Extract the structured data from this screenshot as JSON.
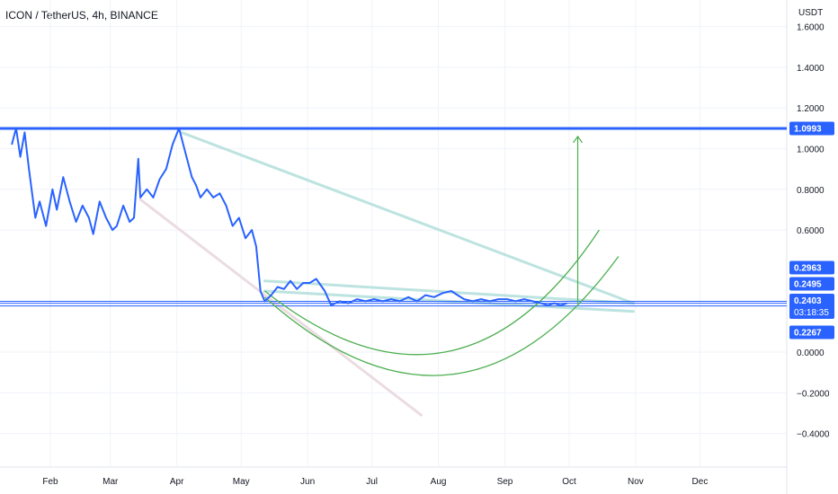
{
  "header": {
    "symbol_line": "ICON / TetherUS, 4h, BINANCE",
    "currency": "USDT"
  },
  "colors": {
    "price_line": "#2962ff",
    "resistance_line": "#2962ff",
    "support_lines": "#2962ff",
    "cup_arcs": "#4caf50",
    "target_arrow": "#4caf50",
    "trend_teal": "#b2dfdb",
    "trend_pink": "#e8d7de",
    "grid": "#f0f3fa",
    "axis_text": "#131722",
    "label_bg": "#2962ff"
  },
  "chart_data": {
    "type": "line",
    "title": "ICON / TetherUS, 4h, BINANCE",
    "ylabel": "USDT",
    "ylim": [
      -0.55,
      1.65
    ],
    "x_axis_labels": [
      "Feb",
      "Mar",
      "Apr",
      "May",
      "Jun",
      "Jul",
      "Aug",
      "Sep",
      "Oct",
      "Nov",
      "Dec"
    ],
    "y_ticks": [
      {
        "value": 1.6,
        "label": "1.6000"
      },
      {
        "value": 1.4,
        "label": "1.4000"
      },
      {
        "value": 1.2,
        "label": "1.2000"
      },
      {
        "value": 1.0,
        "label": "1.0000"
      },
      {
        "value": 0.8,
        "label": "0.8000"
      },
      {
        "value": 0.6,
        "label": "0.6000"
      },
      {
        "value": 0.0,
        "label": "0.0000"
      },
      {
        "value": -0.2,
        "label": "−0.2000"
      },
      {
        "value": -0.4,
        "label": "−0.4000"
      }
    ],
    "series": [
      {
        "points": [
          [
            "Jan 14",
            1.02
          ],
          [
            "Jan 16",
            1.1
          ],
          [
            "Jan 18",
            0.96
          ],
          [
            "Jan 20",
            1.08
          ],
          [
            "Jan 22",
            0.9
          ],
          [
            "Jan 25",
            0.66
          ],
          [
            "Jan 27",
            0.74
          ],
          [
            "Jan 30",
            0.62
          ],
          [
            "Feb 2",
            0.8
          ],
          [
            "Feb 4",
            0.7
          ],
          [
            "Feb 7",
            0.86
          ],
          [
            "Feb 10",
            0.74
          ],
          [
            "Feb 13",
            0.64
          ],
          [
            "Feb 16",
            0.72
          ],
          [
            "Feb 19",
            0.66
          ],
          [
            "Feb 21",
            0.58
          ],
          [
            "Feb 24",
            0.74
          ],
          [
            "Feb 27",
            0.66
          ],
          [
            "Mar 2",
            0.6
          ],
          [
            "Mar 4",
            0.62
          ],
          [
            "Mar 7",
            0.72
          ],
          [
            "Mar 10",
            0.64
          ],
          [
            "Mar 12",
            0.66
          ],
          [
            "Mar 14",
            0.95
          ],
          [
            "Mar 15",
            0.76
          ],
          [
            "Mar 18",
            0.8
          ],
          [
            "Mar 21",
            0.76
          ],
          [
            "Mar 24",
            0.85
          ],
          [
            "Mar 27",
            0.9
          ],
          [
            "Mar 30",
            1.02
          ],
          [
            "Apr 2",
            1.1
          ],
          [
            "Apr 5",
            0.98
          ],
          [
            "Apr 8",
            0.86
          ],
          [
            "Apr 10",
            0.82
          ],
          [
            "Apr 12",
            0.76
          ],
          [
            "Apr 15",
            0.8
          ],
          [
            "Apr 18",
            0.76
          ],
          [
            "Apr 21",
            0.78
          ],
          [
            "Apr 24",
            0.72
          ],
          [
            "Apr 27",
            0.62
          ],
          [
            "Apr 30",
            0.66
          ],
          [
            "May 3",
            0.56
          ],
          [
            "May 6",
            0.6
          ],
          [
            "May 8",
            0.52
          ],
          [
            "May 10",
            0.3
          ],
          [
            "May 12",
            0.25
          ],
          [
            "May 15",
            0.28
          ],
          [
            "May 18",
            0.32
          ],
          [
            "May 21",
            0.31
          ],
          [
            "May 24",
            0.35
          ],
          [
            "May 27",
            0.31
          ],
          [
            "May 30",
            0.34
          ],
          [
            "Jun 2",
            0.34
          ],
          [
            "Jun 5",
            0.36
          ],
          [
            "Jun 9",
            0.3
          ],
          [
            "Jun 12",
            0.23
          ],
          [
            "Jun 16",
            0.25
          ],
          [
            "Jun 20",
            0.24
          ],
          [
            "Jun 24",
            0.26
          ],
          [
            "Jun 28",
            0.25
          ],
          [
            "Jul 2",
            0.26
          ],
          [
            "Jul 6",
            0.25
          ],
          [
            "Jul 10",
            0.26
          ],
          [
            "Jul 14",
            0.25
          ],
          [
            "Jul 18",
            0.27
          ],
          [
            "Jul 22",
            0.25
          ],
          [
            "Jul 26",
            0.28
          ],
          [
            "Jul 30",
            0.27
          ],
          [
            "Aug 3",
            0.29
          ],
          [
            "Aug 7",
            0.3
          ],
          [
            "Aug 10",
            0.28
          ],
          [
            "Aug 13",
            0.26
          ],
          [
            "Aug 17",
            0.25
          ],
          [
            "Aug 21",
            0.26
          ],
          [
            "Aug 25",
            0.25
          ],
          [
            "Aug 29",
            0.26
          ],
          [
            "Sep 2",
            0.26
          ],
          [
            "Sep 6",
            0.25
          ],
          [
            "Sep 10",
            0.26
          ],
          [
            "Sep 14",
            0.25
          ],
          [
            "Sep 18",
            0.24
          ],
          [
            "Sep 21",
            0.23
          ],
          [
            "Sep 24",
            0.24
          ],
          [
            "Sep 27",
            0.23
          ],
          [
            "Sep 30",
            0.24
          ]
        ]
      }
    ],
    "horizontal_levels": [
      {
        "value": 1.0993,
        "label": "1.0993",
        "role": "resistance"
      },
      {
        "value": 0.2495,
        "label": "0.2495",
        "role": "support"
      },
      {
        "value": 0.2403,
        "label": "0.2403",
        "role": "last-price"
      },
      {
        "value": 0.2267,
        "label": "0.2267",
        "role": "support"
      }
    ],
    "price_labels": [
      {
        "value": 0.2963,
        "label": "0.2963"
      },
      {
        "value": 0.2495,
        "label": "0.2495"
      },
      {
        "value": 0.2403,
        "label": "0.2403",
        "countdown": "03:18:35"
      },
      {
        "value": 0.2267,
        "label": "0.2267"
      }
    ],
    "drawings": {
      "cup_arcs": [
        {
          "start": [
            "May 12",
            0.3
          ],
          "bottom": [
            "Aug 4",
            0.0
          ],
          "end": [
            "Oct 15",
            0.6
          ]
        },
        {
          "start": [
            "May 12",
            0.27
          ],
          "bottom": [
            "Aug 7",
            -0.11
          ],
          "end": [
            "Oct 24",
            0.47
          ]
        }
      ],
      "target_arrow": {
        "from": [
          "Oct 5",
          0.24
        ],
        "to": [
          "Oct 5",
          1.06
        ]
      },
      "trend_lines": [
        {
          "color": "teal",
          "from": [
            "Apr 3",
            1.08
          ],
          "to": [
            "Oct 31",
            0.24
          ]
        },
        {
          "color": "teal",
          "from": [
            "May 12",
            0.35
          ],
          "to": [
            "Oct 31",
            0.24
          ]
        },
        {
          "color": "teal",
          "from": [
            "May 12",
            0.3
          ],
          "to": [
            "Oct 31",
            0.2
          ]
        },
        {
          "color": "pink",
          "from": [
            "Mar 15",
            0.75
          ],
          "to": [
            "Jul 24",
            -0.31
          ]
        }
      ]
    }
  }
}
